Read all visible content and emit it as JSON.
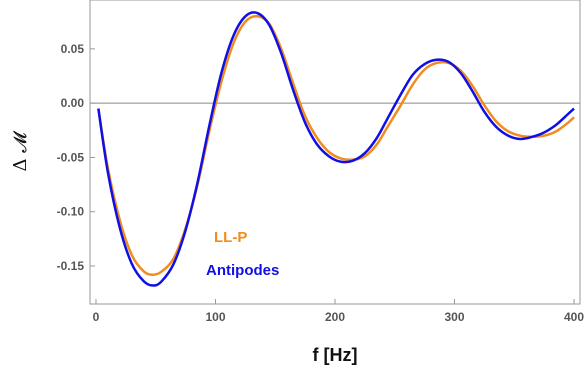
{
  "chart_data": {
    "type": "line",
    "title": "",
    "xlabel": "f [Hz]",
    "ylabel": "Δ 𝓜",
    "xlim": [
      -5,
      405
    ],
    "ylim": [
      -0.185,
      0.095
    ],
    "x_ticks": [
      0,
      100,
      200,
      300,
      400
    ],
    "x_tick_labels": [
      "0",
      "100",
      "200",
      "300",
      "400"
    ],
    "y_ticks": [
      -0.15,
      -0.1,
      -0.05,
      0.0,
      0.05
    ],
    "y_tick_labels": [
      "-0.15",
      "-0.10",
      "-0.05",
      "0.00",
      "0.05"
    ],
    "zero_line": true,
    "grid": false,
    "legend_placement": "lower-left (inline labels)",
    "series": [
      {
        "name": "LL-P",
        "color": "#F28C1E",
        "points": [
          [
            2,
            -0.005
          ],
          [
            10,
            -0.06
          ],
          [
            20,
            -0.108
          ],
          [
            30,
            -0.14
          ],
          [
            40,
            -0.155
          ],
          [
            48,
            -0.158
          ],
          [
            55,
            -0.155
          ],
          [
            65,
            -0.143
          ],
          [
            75,
            -0.115
          ],
          [
            85,
            -0.075
          ],
          [
            95,
            -0.025
          ],
          [
            105,
            0.02
          ],
          [
            115,
            0.055
          ],
          [
            125,
            0.075
          ],
          [
            135,
            0.08
          ],
          [
            145,
            0.073
          ],
          [
            155,
            0.05
          ],
          [
            165,
            0.018
          ],
          [
            175,
            -0.012
          ],
          [
            185,
            -0.032
          ],
          [
            195,
            -0.045
          ],
          [
            205,
            -0.051
          ],
          [
            215,
            -0.052
          ],
          [
            225,
            -0.049
          ],
          [
            235,
            -0.038
          ],
          [
            245,
            -0.02
          ],
          [
            255,
            -0.002
          ],
          [
            265,
            0.017
          ],
          [
            275,
            0.031
          ],
          [
            285,
            0.037
          ],
          [
            295,
            0.037
          ],
          [
            305,
            0.03
          ],
          [
            315,
            0.016
          ],
          [
            325,
            -0.002
          ],
          [
            335,
            -0.017
          ],
          [
            345,
            -0.026
          ],
          [
            355,
            -0.03
          ],
          [
            365,
            -0.031
          ],
          [
            375,
            -0.03
          ],
          [
            385,
            -0.026
          ],
          [
            395,
            -0.018
          ],
          [
            400,
            -0.013
          ]
        ]
      },
      {
        "name": "Antipodes",
        "color": "#0F0FE6",
        "points": [
          [
            2,
            -0.005
          ],
          [
            10,
            -0.064
          ],
          [
            20,
            -0.115
          ],
          [
            30,
            -0.148
          ],
          [
            40,
            -0.164
          ],
          [
            48,
            -0.168
          ],
          [
            55,
            -0.164
          ],
          [
            65,
            -0.148
          ],
          [
            75,
            -0.117
          ],
          [
            85,
            -0.073
          ],
          [
            95,
            -0.02
          ],
          [
            105,
            0.028
          ],
          [
            115,
            0.062
          ],
          [
            125,
            0.08
          ],
          [
            135,
            0.083
          ],
          [
            145,
            0.072
          ],
          [
            155,
            0.046
          ],
          [
            165,
            0.012
          ],
          [
            175,
            -0.018
          ],
          [
            185,
            -0.038
          ],
          [
            195,
            -0.049
          ],
          [
            205,
            -0.054
          ],
          [
            215,
            -0.053
          ],
          [
            225,
            -0.046
          ],
          [
            235,
            -0.032
          ],
          [
            245,
            -0.012
          ],
          [
            255,
            0.008
          ],
          [
            265,
            0.026
          ],
          [
            275,
            0.036
          ],
          [
            285,
            0.04
          ],
          [
            295,
            0.038
          ],
          [
            305,
            0.028
          ],
          [
            315,
            0.011
          ],
          [
            325,
            -0.008
          ],
          [
            335,
            -0.022
          ],
          [
            345,
            -0.03
          ],
          [
            355,
            -0.033
          ],
          [
            365,
            -0.031
          ],
          [
            375,
            -0.027
          ],
          [
            385,
            -0.02
          ],
          [
            395,
            -0.01
          ],
          [
            400,
            -0.005
          ]
        ]
      }
    ]
  }
}
